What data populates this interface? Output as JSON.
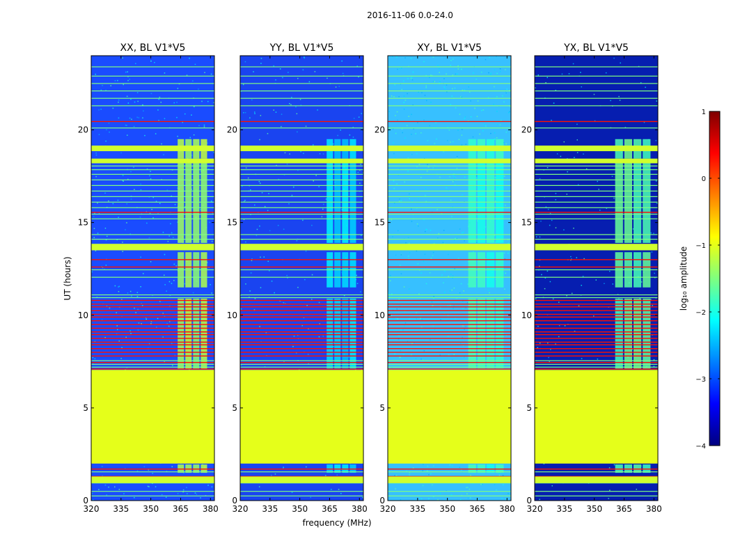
{
  "chart_data": {
    "type": "heatmap",
    "suptitle": "2016-11-06 0.0-24.0",
    "xlabel": "frequency (MHz)",
    "ylabel": "UT (hours)",
    "xlim": [
      320,
      382
    ],
    "ylim": [
      0,
      24
    ],
    "xticks": [
      320,
      335,
      350,
      365,
      380
    ],
    "yticks": [
      0,
      5,
      10,
      15,
      20
    ],
    "panels": [
      {
        "title": "XX, BL V1*V5",
        "background": "#1a4cff",
        "noise": 0.55,
        "block_start_mhz": 363.5,
        "block_level": -1.3
      },
      {
        "title": "YY, BL V1*V5",
        "background": "#1a44f0",
        "noise": 0.35,
        "block_start_mhz": 363.5,
        "block_level": -2.3
      },
      {
        "title": "XY, BL V1*V5",
        "background": "#37c0ff",
        "noise": 0.9,
        "block_start_mhz": 360.5,
        "block_level": -1.9
      },
      {
        "title": "YX, BL V1*V5",
        "background": "#061eb0",
        "noise": 0.25,
        "block_start_mhz": 360.5,
        "block_level": -1.7
      }
    ],
    "flagged_band": {
      "from_hour": 2.0,
      "to_hour": 7.05,
      "level": -1.0
    },
    "colorbar": {
      "label": "log₁₀ amplitude",
      "range": [
        -4,
        1
      ],
      "ticks": [
        "1",
        "0",
        "−1",
        "−2",
        "−3",
        "−4"
      ],
      "colormap": "jet"
    }
  }
}
